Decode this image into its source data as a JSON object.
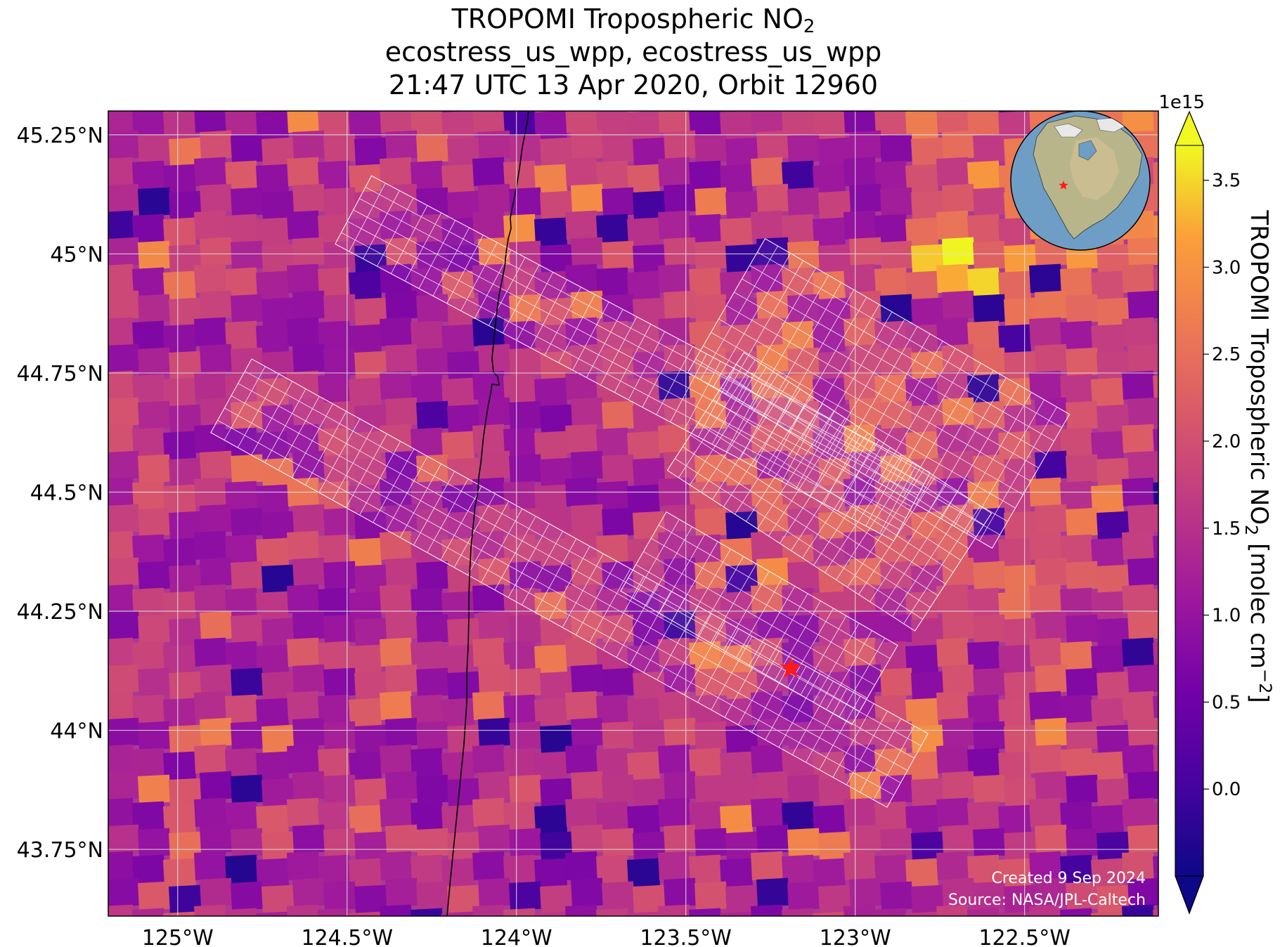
{
  "title": {
    "line1_main": "TROPOMI Tropospheric NO",
    "line1_sub": "2",
    "line2": "ecostress_us_wpp, ecostress_us_wpp",
    "line3": "21:47 UTC 13 Apr 2020, Orbit 12960"
  },
  "axes": {
    "lat_ticks": [
      {
        "value": 45.25,
        "label": "45.25°N"
      },
      {
        "value": 45.0,
        "label": "45°N"
      },
      {
        "value": 44.75,
        "label": "44.75°N"
      },
      {
        "value": 44.5,
        "label": "44.5°N"
      },
      {
        "value": 44.25,
        "label": "44.25°N"
      },
      {
        "value": 44.0,
        "label": "44°N"
      },
      {
        "value": 43.75,
        "label": "43.75°N"
      }
    ],
    "lon_ticks": [
      {
        "value": -125.0,
        "label": "125°W"
      },
      {
        "value": -124.5,
        "label": "124.5°W"
      },
      {
        "value": -124.0,
        "label": "124°W"
      },
      {
        "value": -123.5,
        "label": "123.5°W"
      },
      {
        "value": -123.0,
        "label": "123°W"
      },
      {
        "value": -122.5,
        "label": "122.5°W"
      }
    ],
    "lon_range": [
      -125.205,
      -122.105
    ],
    "lat_range": [
      43.61,
      45.3
    ],
    "grid": true
  },
  "colorbar": {
    "exponent_label": "1e15",
    "label_main": "TROPOMI Tropospheric NO",
    "label_sub": "2",
    "label_units": " [molec cm",
    "label_sup": "−2",
    "label_close": "]",
    "range": [
      -0.5,
      3.7
    ],
    "extend": "both",
    "colormap": "plasma",
    "ticks": [
      {
        "value": 0.0,
        "label": "0.0"
      },
      {
        "value": 0.5,
        "label": "0.5"
      },
      {
        "value": 1.0,
        "label": "1.0"
      },
      {
        "value": 1.5,
        "label": "1.5"
      },
      {
        "value": 2.0,
        "label": "2.0"
      },
      {
        "value": 2.5,
        "label": "2.5"
      },
      {
        "value": 3.0,
        "label": "3.0"
      },
      {
        "value": 3.5,
        "label": "3.5"
      }
    ]
  },
  "site_marker": {
    "lon": -123.19,
    "lat": 44.13,
    "color": "#ff1a1a",
    "icon": "star-icon"
  },
  "inset_globe": {
    "icon": "globe-icon",
    "marker_color": "#ff1a1a"
  },
  "credits": {
    "line1": "Created 9 Sep 2024",
    "line2": "Source: NASA/JPL-Caltech"
  },
  "colors": {
    "grid": "#dcdcdc",
    "coastline": "#000000",
    "footprint": "#ffffff",
    "marker": "#ff1a1a"
  }
}
